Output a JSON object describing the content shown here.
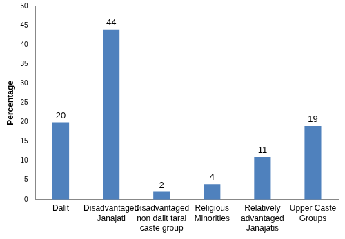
{
  "chart_data": {
    "type": "bar",
    "y_label": "Percentage",
    "categories": [
      "Dalit",
      "Disadvantaged Janajati",
      "Disadvantaged non dalit tarai caste group",
      "Religious Minorities",
      "Relatively advantaged Janajatis",
      "Upper Caste Groups"
    ],
    "values": [
      20,
      44,
      2,
      4,
      11,
      19
    ],
    "color": "#4f81bd",
    "ylim": [
      0,
      50
    ],
    "yticks": [
      0,
      5,
      10,
      15,
      20,
      25,
      30,
      35,
      40,
      45,
      50
    ],
    "grid": false,
    "data_labels": true
  }
}
